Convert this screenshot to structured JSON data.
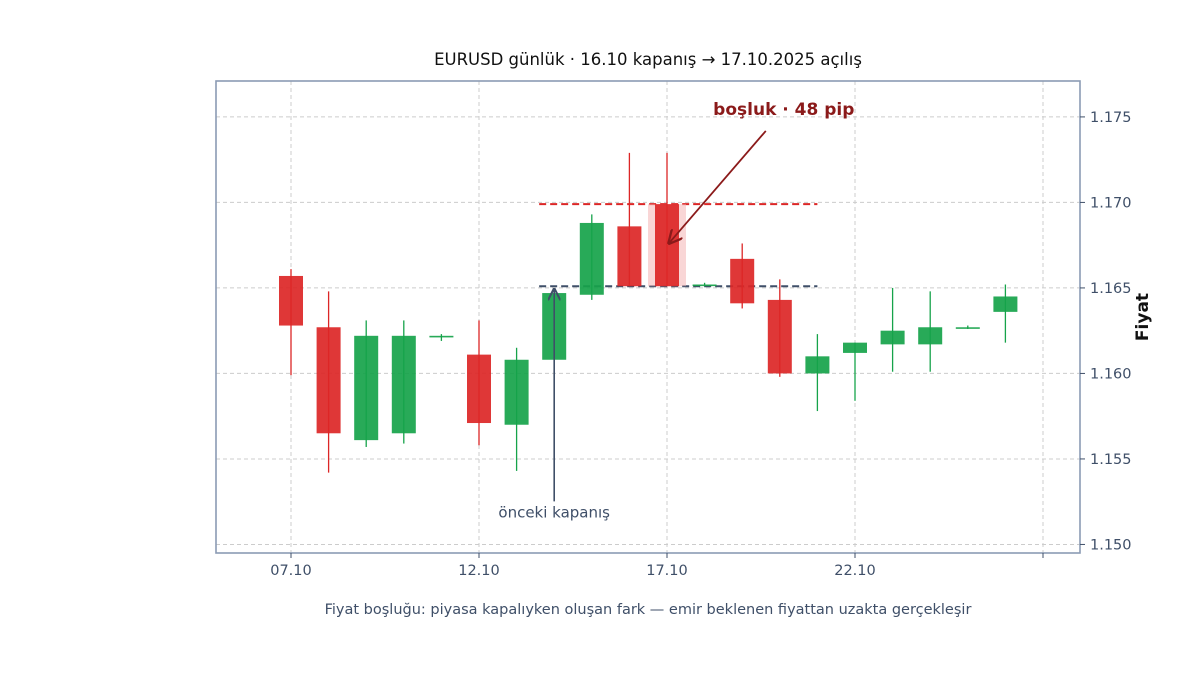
{
  "chart_data": {
    "type": "candlestick",
    "title": "EURUSD günlük · 16.10 kapanış → 17.10.2025 açılış",
    "ylabel": "Fiyat",
    "xlabel": "",
    "caption": "Fiyat boşluğu: piyasa kapalıyken oluşan fark — emir beklenen fiyattan uzakta gerçekleşir",
    "ylim": [
      1.1495,
      1.1771
    ],
    "y_ticks": [
      "1.150",
      "1.155",
      "1.160",
      "1.165",
      "1.170",
      "1.175"
    ],
    "x_ticks": [
      {
        "index": 0,
        "label": "07.10"
      },
      {
        "index": 5,
        "label": "12.10"
      },
      {
        "index": 10,
        "label": "17.10"
      },
      {
        "index": 15,
        "label": "22.10"
      },
      {
        "index": 20,
        "label": ""
      }
    ],
    "grid": true,
    "colors": {
      "up": "#16a34a",
      "down": "#dc2626",
      "gap": "#f4b4b4",
      "prev_close_line": "#3f4f68",
      "gap_line": "#dc2626",
      "annotation": "#8b1a1a",
      "axis_text": "#3f4f68",
      "frame": "#8b9bb4"
    },
    "candles": [
      {
        "date": "07.10",
        "open": 1.1657,
        "high": 1.1661,
        "low": 1.1599,
        "close": 1.1628
      },
      {
        "date": "08.10",
        "open": 1.1627,
        "high": 1.1648,
        "low": 1.1542,
        "close": 1.1565
      },
      {
        "date": "09.10",
        "open": 1.1561,
        "high": 1.1631,
        "low": 1.1557,
        "close": 1.1622
      },
      {
        "date": "10.10",
        "open": 1.1565,
        "high": 1.1631,
        "low": 1.1559,
        "close": 1.1622
      },
      {
        "date": "11.10",
        "open": 1.1622,
        "high": 1.1623,
        "low": 1.1619,
        "close": 1.1622
      },
      {
        "date": "12.10",
        "open": 1.1611,
        "high": 1.1631,
        "low": 1.1558,
        "close": 1.1571
      },
      {
        "date": "13.10",
        "open": 1.157,
        "high": 1.1615,
        "low": 1.1543,
        "close": 1.1608
      },
      {
        "date": "14.10",
        "open": 1.1608,
        "high": 1.1648,
        "low": 1.1608,
        "close": 1.1647
      },
      {
        "date": "15.10",
        "open": 1.1646,
        "high": 1.1693,
        "low": 1.1643,
        "close": 1.1688
      },
      {
        "date": "16.10",
        "open": 1.1686,
        "high": 1.1729,
        "low": 1.1651,
        "close": 1.1651
      },
      {
        "date": "17.10",
        "open": 1.1699,
        "high": 1.1729,
        "low": 1.1651,
        "close": 1.1651,
        "gap": true
      },
      {
        "date": "18.10",
        "open": 1.1652,
        "high": 1.1653,
        "low": 1.1651,
        "close": 1.1652
      },
      {
        "date": "19.10",
        "open": 1.1667,
        "high": 1.1676,
        "low": 1.1638,
        "close": 1.1641
      },
      {
        "date": "20.10",
        "open": 1.1643,
        "high": 1.1655,
        "low": 1.1598,
        "close": 1.16
      },
      {
        "date": "21.10",
        "open": 1.16,
        "high": 1.1623,
        "low": 1.1578,
        "close": 1.161
      },
      {
        "date": "22.10",
        "open": 1.1612,
        "high": 1.1618,
        "low": 1.1584,
        "close": 1.1618
      },
      {
        "date": "23.10",
        "open": 1.1617,
        "high": 1.165,
        "low": 1.1601,
        "close": 1.1625
      },
      {
        "date": "24.10",
        "open": 1.1617,
        "high": 1.1648,
        "low": 1.1601,
        "close": 1.1627
      },
      {
        "date": "25.10",
        "open": 1.1627,
        "high": 1.1628,
        "low": 1.1626,
        "close": 1.1627
      },
      {
        "date": "26.10",
        "open": 1.1636,
        "high": 1.1652,
        "low": 1.1618,
        "close": 1.1645
      }
    ],
    "reference_lines": [
      {
        "name": "prev_close",
        "y": 1.1651,
        "from_index": 6.6,
        "to_index": 14
      },
      {
        "name": "gap_open",
        "y": 1.1699,
        "from_index": 6.6,
        "to_index": 14
      }
    ],
    "annotations": [
      {
        "text": "önceki kapanış",
        "text_index": 7,
        "text_y": 1.1517,
        "arrow_to_index": 7,
        "arrow_to_y": 1.1651
      },
      {
        "text": "boşluk · 48 pip",
        "text_index": 13,
        "text_y": 1.175,
        "arrow_to_index": 10.0,
        "arrow_to_y": 1.1675
      }
    ]
  }
}
